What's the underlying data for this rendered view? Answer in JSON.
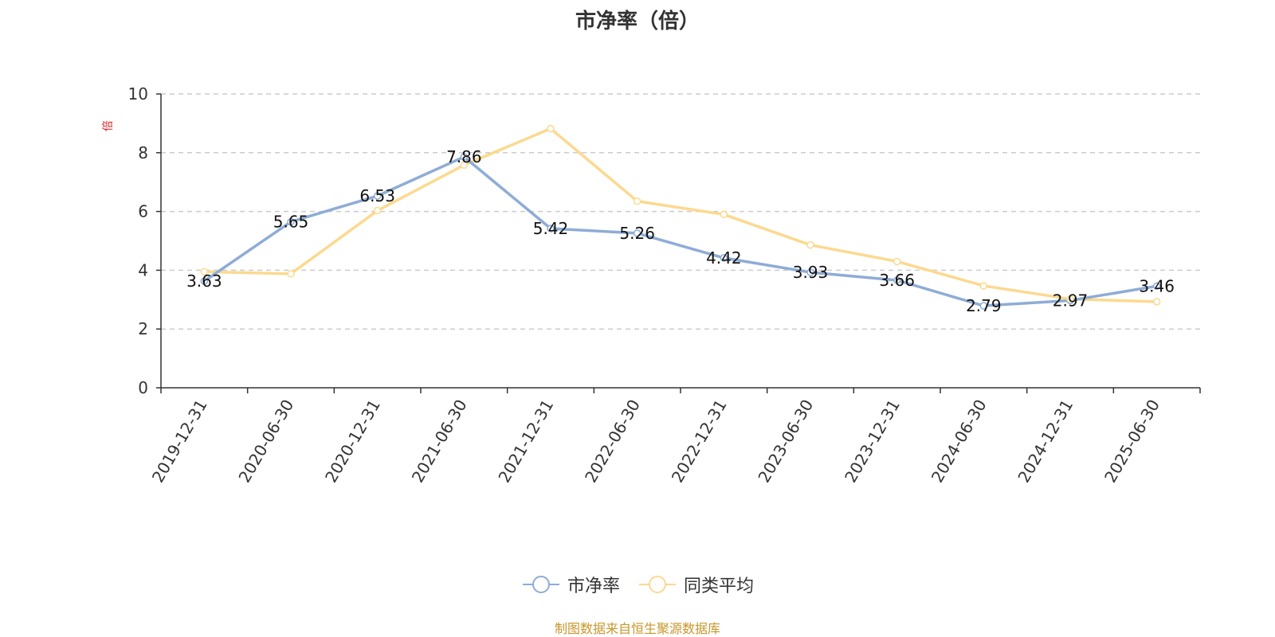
{
  "chart_data": {
    "type": "line",
    "title": "市净率（倍）",
    "ylabel": "倍",
    "ylim": [
      0,
      10
    ],
    "yticks": [
      0,
      2,
      4,
      6,
      8,
      10
    ],
    "grid": "horizontal-dashed",
    "legend_position": "bottom",
    "categories": [
      "2019-12-31",
      "2020-06-30",
      "2020-12-31",
      "2021-06-30",
      "2021-12-31",
      "2022-06-30",
      "2022-12-31",
      "2023-06-30",
      "2023-12-31",
      "2024-06-30",
      "2024-12-31",
      "2025-06-30"
    ],
    "series": [
      {
        "name": "市净率",
        "color": "#8eacd6",
        "show_labels": true,
        "values": [
          3.63,
          5.65,
          6.53,
          7.86,
          5.42,
          5.26,
          4.42,
          3.93,
          3.66,
          2.79,
          2.97,
          3.46
        ]
      },
      {
        "name": "同类平均",
        "color": "#fcd98f",
        "show_labels": false,
        "values": [
          3.95,
          3.88,
          6.03,
          7.58,
          8.82,
          6.35,
          5.9,
          4.86,
          4.3,
          3.47,
          3.02,
          2.93
        ]
      }
    ]
  },
  "source_note": "制图数据来自恒生聚源数据库",
  "colors": {
    "source_note": "#c8962a",
    "ylabel": "#e02020",
    "axis": "#333333",
    "grid": "#cccccc"
  }
}
